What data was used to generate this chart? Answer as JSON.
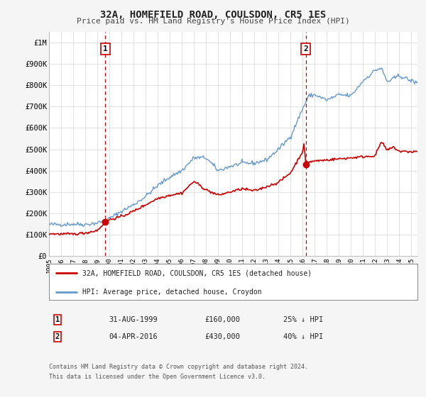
{
  "title": "32A, HOMEFIELD ROAD, COULSDON, CR5 1ES",
  "subtitle": "Price paid vs. HM Land Registry's House Price Index (HPI)",
  "background_color": "#f5f5f5",
  "plot_bg_color": "#ffffff",
  "grid_color": "#dddddd",
  "hpi_color": "#6699cc",
  "price_color": "#cc0000",
  "sale1_date": 1999.667,
  "sale1_price": 160000,
  "sale2_date": 2016.25,
  "sale2_price": 430000,
  "legend_entry1": "32A, HOMEFIELD ROAD, COULSDON, CR5 1ES (detached house)",
  "legend_entry2": "HPI: Average price, detached house, Croydon",
  "table_row1": [
    "1",
    "31-AUG-1999",
    "£160,000",
    "25% ↓ HPI"
  ],
  "table_row2": [
    "2",
    "04-APR-2016",
    "£430,000",
    "40% ↓ HPI"
  ],
  "footnote1": "Contains HM Land Registry data © Crown copyright and database right 2024.",
  "footnote2": "This data is licensed under the Open Government Licence v3.0.",
  "ylim_max": 1050000,
  "xlim_min": 1995.0,
  "xlim_max": 2025.5,
  "yticks": [
    0,
    100000,
    200000,
    300000,
    400000,
    500000,
    600000,
    700000,
    800000,
    900000,
    1000000
  ],
  "ylabels": [
    "£0",
    "£100K",
    "£200K",
    "£300K",
    "£400K",
    "£500K",
    "£600K",
    "£700K",
    "£800K",
    "£900K",
    "£1M"
  ]
}
